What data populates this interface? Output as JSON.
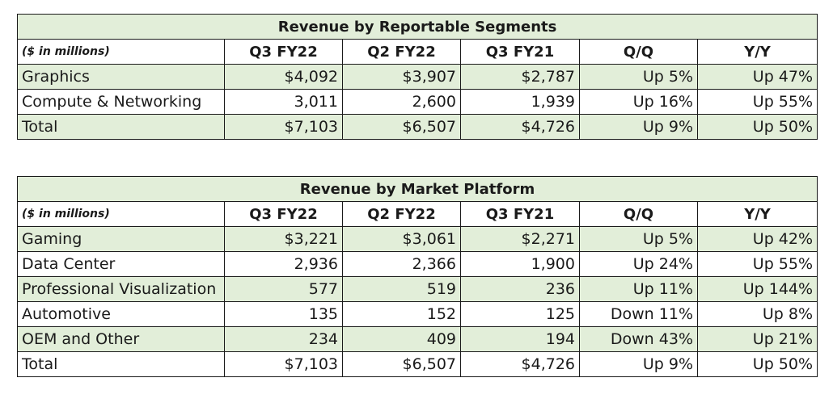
{
  "columns": [
    "($ in millions)",
    "Q3 FY22",
    "Q2 FY22",
    "Q3 FY21",
    "Q/Q",
    "Y/Y"
  ],
  "segments": {
    "title": "Revenue by Reportable Segments",
    "rows": [
      [
        "Graphics",
        "$4,092",
        "$3,907",
        "$2,787",
        "Up 5%",
        "Up 47%"
      ],
      [
        "Compute & Networking",
        "3,011",
        "2,600",
        "1,939",
        "Up 16%",
        "Up 55%"
      ],
      [
        "Total",
        "$7,103",
        "$6,507",
        "$4,726",
        "Up 9%",
        "Up 50%"
      ]
    ]
  },
  "platforms": {
    "title": "Revenue by Market Platform",
    "rows": [
      [
        "Gaming",
        "$3,221",
        "$3,061",
        "$2,271",
        "Up 5%",
        "Up 42%"
      ],
      [
        "Data Center",
        "2,936",
        "2,366",
        "1,900",
        "Up 24%",
        "Up 55%"
      ],
      [
        "Professional Visualization",
        "577",
        "519",
        "236",
        "Up 11%",
        "Up 144%"
      ],
      [
        "Automotive",
        "135",
        "152",
        "125",
        "Down 11%",
        "Up 8%"
      ],
      [
        "OEM and Other",
        "234",
        "409",
        "194",
        "Down 43%",
        "Up 21%"
      ],
      [
        "Total",
        "$7,103",
        "$6,507",
        "$4,726",
        "Up 9%",
        "Up 50%"
      ]
    ]
  },
  "colors": {
    "shade": "#e2eed9",
    "border": "#1a1a1a"
  }
}
